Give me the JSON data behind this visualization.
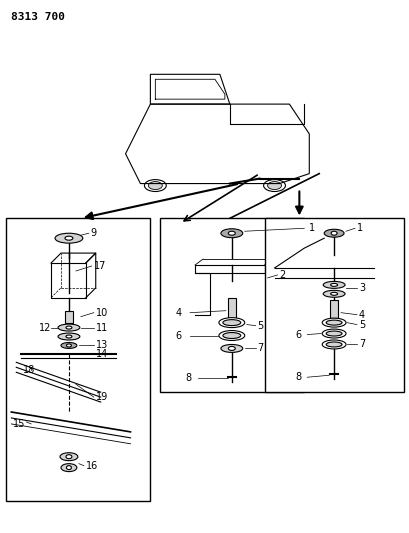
{
  "title_code": "8313 700",
  "bg_color": "#ffffff",
  "line_color": "#000000",
  "fig_width": 4.1,
  "fig_height": 5.33,
  "dpi": 100
}
